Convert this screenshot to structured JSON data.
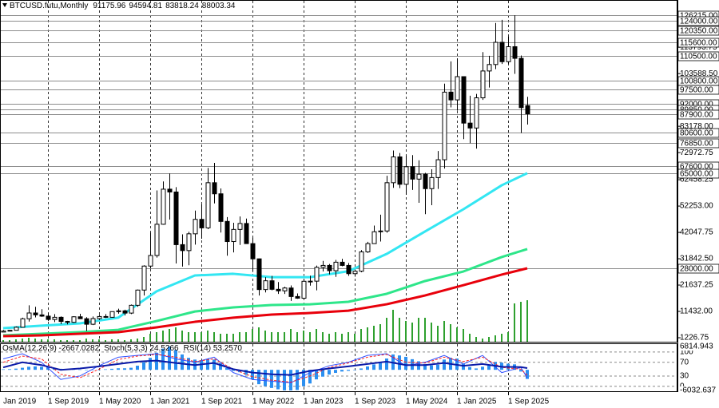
{
  "chart_data": [
    {
      "type": "candlestick",
      "title": "BTCUSD.futu,Monthly",
      "x": [
        "2019-02-01",
        "2019-03-01",
        "2019-04-01",
        "2019-05-01",
        "2019-06-01",
        "2019-07-01",
        "2019-08-01",
        "2019-09-01",
        "2019-10-01",
        "2019-11-01",
        "2019-12-01",
        "2020-01-01",
        "2020-02-01",
        "2020-03-01",
        "2020-04-01",
        "2020-05-01",
        "2020-06-01",
        "2020-07-01",
        "2020-08-01",
        "2020-09-01",
        "2020-10-01",
        "2020-11-01",
        "2020-12-01",
        "2021-01-01",
        "2021-02-01",
        "2021-03-01",
        "2021-04-01",
        "2021-05-01",
        "2021-06-01",
        "2021-07-01",
        "2021-08-01",
        "2021-09-01",
        "2021-10-01",
        "2021-11-01",
        "2021-12-01",
        "2022-01-01",
        "2022-02-01",
        "2022-03-01",
        "2022-04-01",
        "2022-05-01",
        "2022-06-01",
        "2022-07-01",
        "2022-08-01",
        "2022-09-01",
        "2022-10-01",
        "2022-11-01",
        "2022-12-01",
        "2023-01-01",
        "2023-02-01",
        "2023-03-01",
        "2023-04-01",
        "2023-05-01",
        "2023-06-01",
        "2023-07-01",
        "2023-08-01",
        "2023-09-01",
        "2023-10-01",
        "2023-11-01",
        "2023-12-01",
        "2024-01-01",
        "2024-02-01",
        "2024-03-01",
        "2024-04-01",
        "2024-05-01",
        "2024-06-01",
        "2024-07-01",
        "2024-08-01",
        "2024-09-01",
        "2024-10-01",
        "2024-11-01",
        "2024-12-01",
        "2025-01-01",
        "2025-02-01",
        "2025-03-01",
        "2025-04-01",
        "2025-05-01",
        "2025-06-01",
        "2025-07-01",
        "2025-08-01",
        "2025-09-01",
        "2025-10-01",
        "2025-11-01",
        "2025-12-01"
      ],
      "open": [
        3430,
        3820,
        4100,
        5300,
        8580,
        10820,
        10080,
        9600,
        8300,
        9150,
        7550,
        7200,
        9350,
        8600,
        6450,
        8650,
        9450,
        9150,
        11350,
        11650,
        10780,
        13800,
        19700,
        29000,
        33100,
        45200,
        58800,
        57700,
        37300,
        35000,
        41500,
        47100,
        43800,
        61300,
        57000,
        46300,
        38500,
        43200,
        45500,
        37700,
        31800,
        19900,
        23300,
        20000,
        19400,
        20500,
        17200,
        16550,
        23100,
        23150,
        28500,
        29250,
        27200,
        30500,
        29250,
        26050,
        27000,
        34500,
        37700,
        42300,
        42600,
        61300,
        71300,
        60700,
        67500,
        62700,
        64600,
        59000,
        63300,
        70200,
        96400,
        93400,
        102400,
        84400,
        82500,
        94200,
        104600,
        107100,
        115700,
        108200,
        114000,
        109500,
        91175.96
      ],
      "high": [
        4200,
        4100,
        5600,
        9000,
        13800,
        13200,
        12300,
        10900,
        10400,
        9500,
        7750,
        9600,
        10500,
        9200,
        9450,
        10100,
        10400,
        11450,
        12480,
        12100,
        14100,
        19900,
        29300,
        42000,
        58300,
        61800,
        64900,
        59600,
        41300,
        42300,
        50500,
        52900,
        67000,
        69000,
        59100,
        48000,
        45800,
        48200,
        47400,
        40000,
        31900,
        24700,
        25200,
        22800,
        21000,
        21500,
        18400,
        23900,
        25300,
        29200,
        31000,
        29800,
        31400,
        31800,
        30200,
        27500,
        35200,
        38400,
        44700,
        48900,
        64000,
        73800,
        72800,
        71900,
        72000,
        70000,
        65100,
        66500,
        73600,
        99700,
        108300,
        109500,
        102500,
        95000,
        95700,
        111900,
        110500,
        123200,
        124400,
        117900,
        126200,
        110600,
        94594.81
      ],
      "low": [
        3400,
        3700,
        4050,
        5300,
        7500,
        9100,
        9300,
        7700,
        7300,
        6500,
        6400,
        6900,
        8500,
        3800,
        6150,
        8100,
        8900,
        8950,
        10550,
        9850,
        10400,
        13200,
        17600,
        28100,
        32300,
        45000,
        47000,
        30000,
        28800,
        29300,
        37300,
        39600,
        43300,
        53300,
        42000,
        33000,
        34300,
        37200,
        37700,
        26700,
        17600,
        18800,
        19600,
        18200,
        18200,
        15500,
        16300,
        16500,
        21400,
        19600,
        26900,
        25800,
        24800,
        28900,
        25200,
        24900,
        26600,
        34100,
        37600,
        38500,
        41900,
        59300,
        59200,
        56600,
        58500,
        53500,
        49100,
        52600,
        58900,
        66800,
        90500,
        89200,
        78200,
        76600,
        74500,
        93400,
        98200,
        105300,
        107300,
        107300,
        103500,
        80600,
        83818.24
      ],
      "close": [
        3820,
        4100,
        5300,
        8580,
        10820,
        10080,
        9600,
        8300,
        9150,
        7550,
        7200,
        9350,
        8600,
        6450,
        8650,
        9450,
        9150,
        11350,
        11650,
        10780,
        13800,
        19700,
        29000,
        33100,
        45200,
        58800,
        57700,
        37300,
        35000,
        41500,
        47100,
        43800,
        61300,
        57000,
        46300,
        38500,
        43200,
        45500,
        37700,
        31800,
        19900,
        23300,
        20000,
        19400,
        20500,
        17200,
        16550,
        23100,
        23150,
        28500,
        29250,
        27200,
        30500,
        29250,
        26050,
        27000,
        34500,
        37700,
        42300,
        42600,
        61300,
        71300,
        60700,
        67500,
        62700,
        64600,
        59000,
        63300,
        70200,
        96400,
        93400,
        102400,
        84400,
        82500,
        94200,
        104600,
        107100,
        115700,
        108200,
        114000,
        109500,
        90400,
        88003.34
      ],
      "up_color": "#ffffff",
      "down_color": "#000000",
      "ylim": [
        -320,
        131485
      ],
      "yticks": [
        1226.75,
        {
          "value": 11432,
          "label": "11432.00"
        },
        21637.25,
        {
          "value": 31842.5,
          "label": "31842.50"
        },
        42047.75,
        {
          "value": 52253,
          "label": "52253.00"
        },
        62458.25,
        72972.75,
        {
          "value": 83178,
          "label": "83178.00"
        },
        {
          "value": 103588.5,
          "label": "103588.50"
        },
        113793.75
      ],
      "levels": [
        {
          "value": 126215,
          "label": "126215.00"
        },
        {
          "value": 124000,
          "label": "124000.00"
        },
        {
          "value": 120350,
          "label": "120350.00"
        },
        {
          "value": 115600,
          "label": "115600.00"
        },
        {
          "value": 110500,
          "label": "110500.00"
        },
        {
          "value": 100800,
          "label": "100800.00"
        },
        {
          "value": 97500,
          "label": "97500.00"
        },
        {
          "value": 92000,
          "label": "92000.00"
        },
        {
          "value": 89850,
          "label": "89850.00"
        },
        {
          "value": 87900,
          "label": "87900.00"
        },
        {
          "value": 80600,
          "label": "80600.00"
        },
        {
          "value": 76850,
          "label": "76850.00"
        },
        {
          "value": 67600,
          "label": "67600.00"
        },
        {
          "value": 65000,
          "label": "65000.00"
        },
        {
          "value": 28000,
          "label": "28000.00"
        }
      ],
      "level_color": "#8c8c8c",
      "lines": [
        {
          "color": "#33e6f2",
          "x": [
            "2019-02-01",
            "2019-08-01",
            "2020-02-01",
            "2020-08-01",
            "2021-02-01",
            "2021-08-01",
            "2022-02-01",
            "2022-08-01",
            "2023-02-01",
            "2023-08-01",
            "2024-02-01",
            "2024-08-01",
            "2025-02-01",
            "2025-08-01",
            "2025-12-01"
          ],
          "values": [
            4940,
            5900,
            6800,
            9000,
            19200,
            25350,
            26000,
            24700,
            24700,
            27000,
            33700,
            42400,
            51000,
            60300,
            65000
          ]
        },
        {
          "color": "#2ee68a",
          "x": [
            "2019-02-01",
            "2019-08-01",
            "2020-02-01",
            "2020-08-01",
            "2021-02-01",
            "2021-08-01",
            "2022-02-01",
            "2022-08-01",
            "2023-02-01",
            "2023-08-01",
            "2024-02-01",
            "2024-08-01",
            "2025-02-01",
            "2025-08-01",
            "2025-12-01"
          ],
          "values": [
            2150,
            2770,
            3400,
            4300,
            7700,
            11400,
            13000,
            13900,
            14200,
            15150,
            18250,
            23200,
            26900,
            32500,
            35600
          ]
        },
        {
          "color": "#e8000b",
          "x": [
            "2019-02-01",
            "2019-08-01",
            "2020-02-01",
            "2020-08-01",
            "2021-02-01",
            "2021-08-01",
            "2022-02-01",
            "2022-08-01",
            "2023-02-01",
            "2023-08-01",
            "2024-02-01",
            "2024-08-01",
            "2025-02-01",
            "2025-08-01",
            "2025-12-01"
          ],
          "values": [
            1850,
            2150,
            2770,
            3400,
            5250,
            7400,
            9000,
            10200,
            10800,
            11700,
            14200,
            17600,
            21600,
            25700,
            28150
          ]
        }
      ],
      "volume": {
        "color": "#2ea02e",
        "values": [
          2,
          2,
          3,
          4,
          5,
          4,
          3,
          3,
          3,
          2,
          2,
          2,
          2,
          4,
          3,
          3,
          2,
          3,
          3,
          2,
          3,
          4,
          6,
          10,
          12,
          14,
          16,
          18,
          14,
          12,
          12,
          12,
          14,
          12,
          10,
          10,
          10,
          12,
          12,
          16,
          18,
          14,
          12,
          12,
          12,
          16,
          12,
          14,
          12,
          16,
          12,
          10,
          12,
          10,
          12,
          10,
          16,
          18,
          20,
          22,
          30,
          40,
          30,
          26,
          24,
          30,
          30,
          24,
          20,
          26,
          22,
          18,
          16,
          10,
          6,
          4,
          6,
          8,
          10,
          12,
          48,
          50,
          52
        ]
      },
      "xticks": [
        {
          "value": "2019-01-01",
          "label": "Jan 2019"
        },
        {
          "value": "2019-09-01",
          "label": "1 Sep 2019"
        },
        {
          "value": "2020-05-01",
          "label": "1 May 2020"
        },
        {
          "value": "2021-01-01",
          "label": "1 Jan 2021"
        },
        {
          "value": "2021-09-01",
          "label": "1 Sep 2021"
        },
        {
          "value": "2022-05-01",
          "label": "1 May 2022"
        },
        {
          "value": "2023-01-01",
          "label": "1 Jan 2023"
        },
        {
          "value": "2023-09-01",
          "label": "1 Sep 2023"
        },
        {
          "value": "2024-05-01",
          "label": "1 May 2024"
        },
        {
          "value": "2025-01-01",
          "label": "1 Jan 2025"
        },
        {
          "value": "2025-09-01",
          "label": "1 Sep 2025"
        }
      ],
      "grid": true
    },
    {
      "type": "oscillator",
      "labels": [
        "OsMA(12,26,9) -2667.0282",
        "Stoch(5,3,3) 24.5266",
        "RSI(14) 53.2570"
      ],
      "histogram": {
        "color": "#2b8ff0",
        "values": [
          150,
          200,
          350,
          600,
          900,
          1000,
          900,
          700,
          500,
          300,
          150,
          100,
          80,
          -100,
          -50,
          50,
          150,
          300,
          450,
          450,
          600,
          1200,
          2200,
          3500,
          5000,
          6200,
          6814.943,
          5800,
          4500,
          3500,
          3000,
          2800,
          3200,
          3000,
          2000,
          500,
          -300,
          -700,
          -1500,
          -2800,
          -4200,
          -4800,
          -5300,
          -5700,
          -6000,
          -6032.637,
          -5900,
          -4800,
          -4000,
          -2800,
          -2000,
          -1400,
          -900,
          -500,
          -300,
          -100,
          400,
          1000,
          1600,
          2000,
          3300,
          4500,
          4200,
          3800,
          3100,
          2500,
          1700,
          1300,
          1500,
          3000,
          3500,
          3300,
          1800,
          800,
          400,
          900,
          1500,
          2300,
          2100,
          1800,
          1600,
          -500,
          -2667.0282
        ]
      },
      "ylim": [
        -6032.637,
        6814.943
      ],
      "yticks": [
        6814.943,
        -6032.637
      ],
      "y2lim": [
        -12,
        116
      ],
      "y2ticks": [
        100,
        70,
        30,
        0
      ],
      "series": [
        {
          "color": "#3050ff",
          "axis": "y2",
          "x": [
            "2019-02-01",
            "2019-05-01",
            "2019-08-01",
            "2019-11-01",
            "2020-02-01",
            "2020-05-01",
            "2020-08-01",
            "2020-11-01",
            "2021-02-01",
            "2021-05-01",
            "2021-08-01",
            "2021-11-01",
            "2022-02-01",
            "2022-05-01",
            "2022-08-01",
            "2022-11-01",
            "2023-02-01",
            "2023-05-01",
            "2023-08-01",
            "2023-11-01",
            "2024-02-01",
            "2024-05-01",
            "2024-08-01",
            "2024-11-01",
            "2025-02-01",
            "2025-05-01",
            "2025-08-01",
            "2025-11-01",
            "2025-12-01"
          ],
          "values": [
            80,
            95,
            70,
            20,
            30,
            60,
            85,
            90,
            95,
            80,
            70,
            85,
            40,
            20,
            15,
            10,
            40,
            60,
            70,
            90,
            95,
            60,
            70,
            90,
            65,
            90,
            40,
            55,
            24.5266
          ]
        },
        {
          "color": "#ff2020",
          "axis": "y2",
          "dash": true,
          "x": [
            "2019-02-01",
            "2019-05-01",
            "2019-08-01",
            "2019-11-01",
            "2020-02-01",
            "2020-05-01",
            "2020-08-01",
            "2020-11-01",
            "2021-02-01",
            "2021-05-01",
            "2021-08-01",
            "2021-11-01",
            "2022-02-01",
            "2022-05-01",
            "2022-08-01",
            "2022-11-01",
            "2023-02-01",
            "2023-05-01",
            "2023-08-01",
            "2023-11-01",
            "2024-02-01",
            "2024-05-01",
            "2024-08-01",
            "2024-11-01",
            "2025-02-01",
            "2025-05-01",
            "2025-08-01",
            "2025-11-01",
            "2025-12-01"
          ],
          "values": [
            70,
            88,
            80,
            35,
            25,
            50,
            78,
            88,
            93,
            85,
            72,
            80,
            50,
            28,
            18,
            12,
            30,
            55,
            68,
            85,
            93,
            70,
            68,
            85,
            72,
            85,
            55,
            50,
            32.5
          ]
        },
        {
          "color": "#0a1aa8",
          "axis": "y2",
          "width": 2,
          "x": [
            "2019-02-01",
            "2019-05-01",
            "2019-08-01",
            "2019-11-01",
            "2020-02-01",
            "2020-05-01",
            "2020-08-01",
            "2020-11-01",
            "2021-02-01",
            "2021-05-01",
            "2021-08-01",
            "2021-11-01",
            "2022-02-01",
            "2022-05-01",
            "2022-08-01",
            "2022-11-01",
            "2023-02-01",
            "2023-05-01",
            "2023-08-01",
            "2023-11-01",
            "2024-02-01",
            "2024-05-01",
            "2024-08-01",
            "2024-11-01",
            "2025-02-01",
            "2025-05-01",
            "2025-08-01",
            "2025-11-01",
            "2025-12-01"
          ],
          "values": [
            55,
            70,
            62,
            48,
            52,
            58,
            65,
            72,
            75,
            68,
            62,
            68,
            50,
            40,
            35,
            33,
            45,
            52,
            58,
            65,
            72,
            62,
            62,
            68,
            60,
            65,
            57,
            56,
            53.257
          ]
        }
      ]
    }
  ]
}
